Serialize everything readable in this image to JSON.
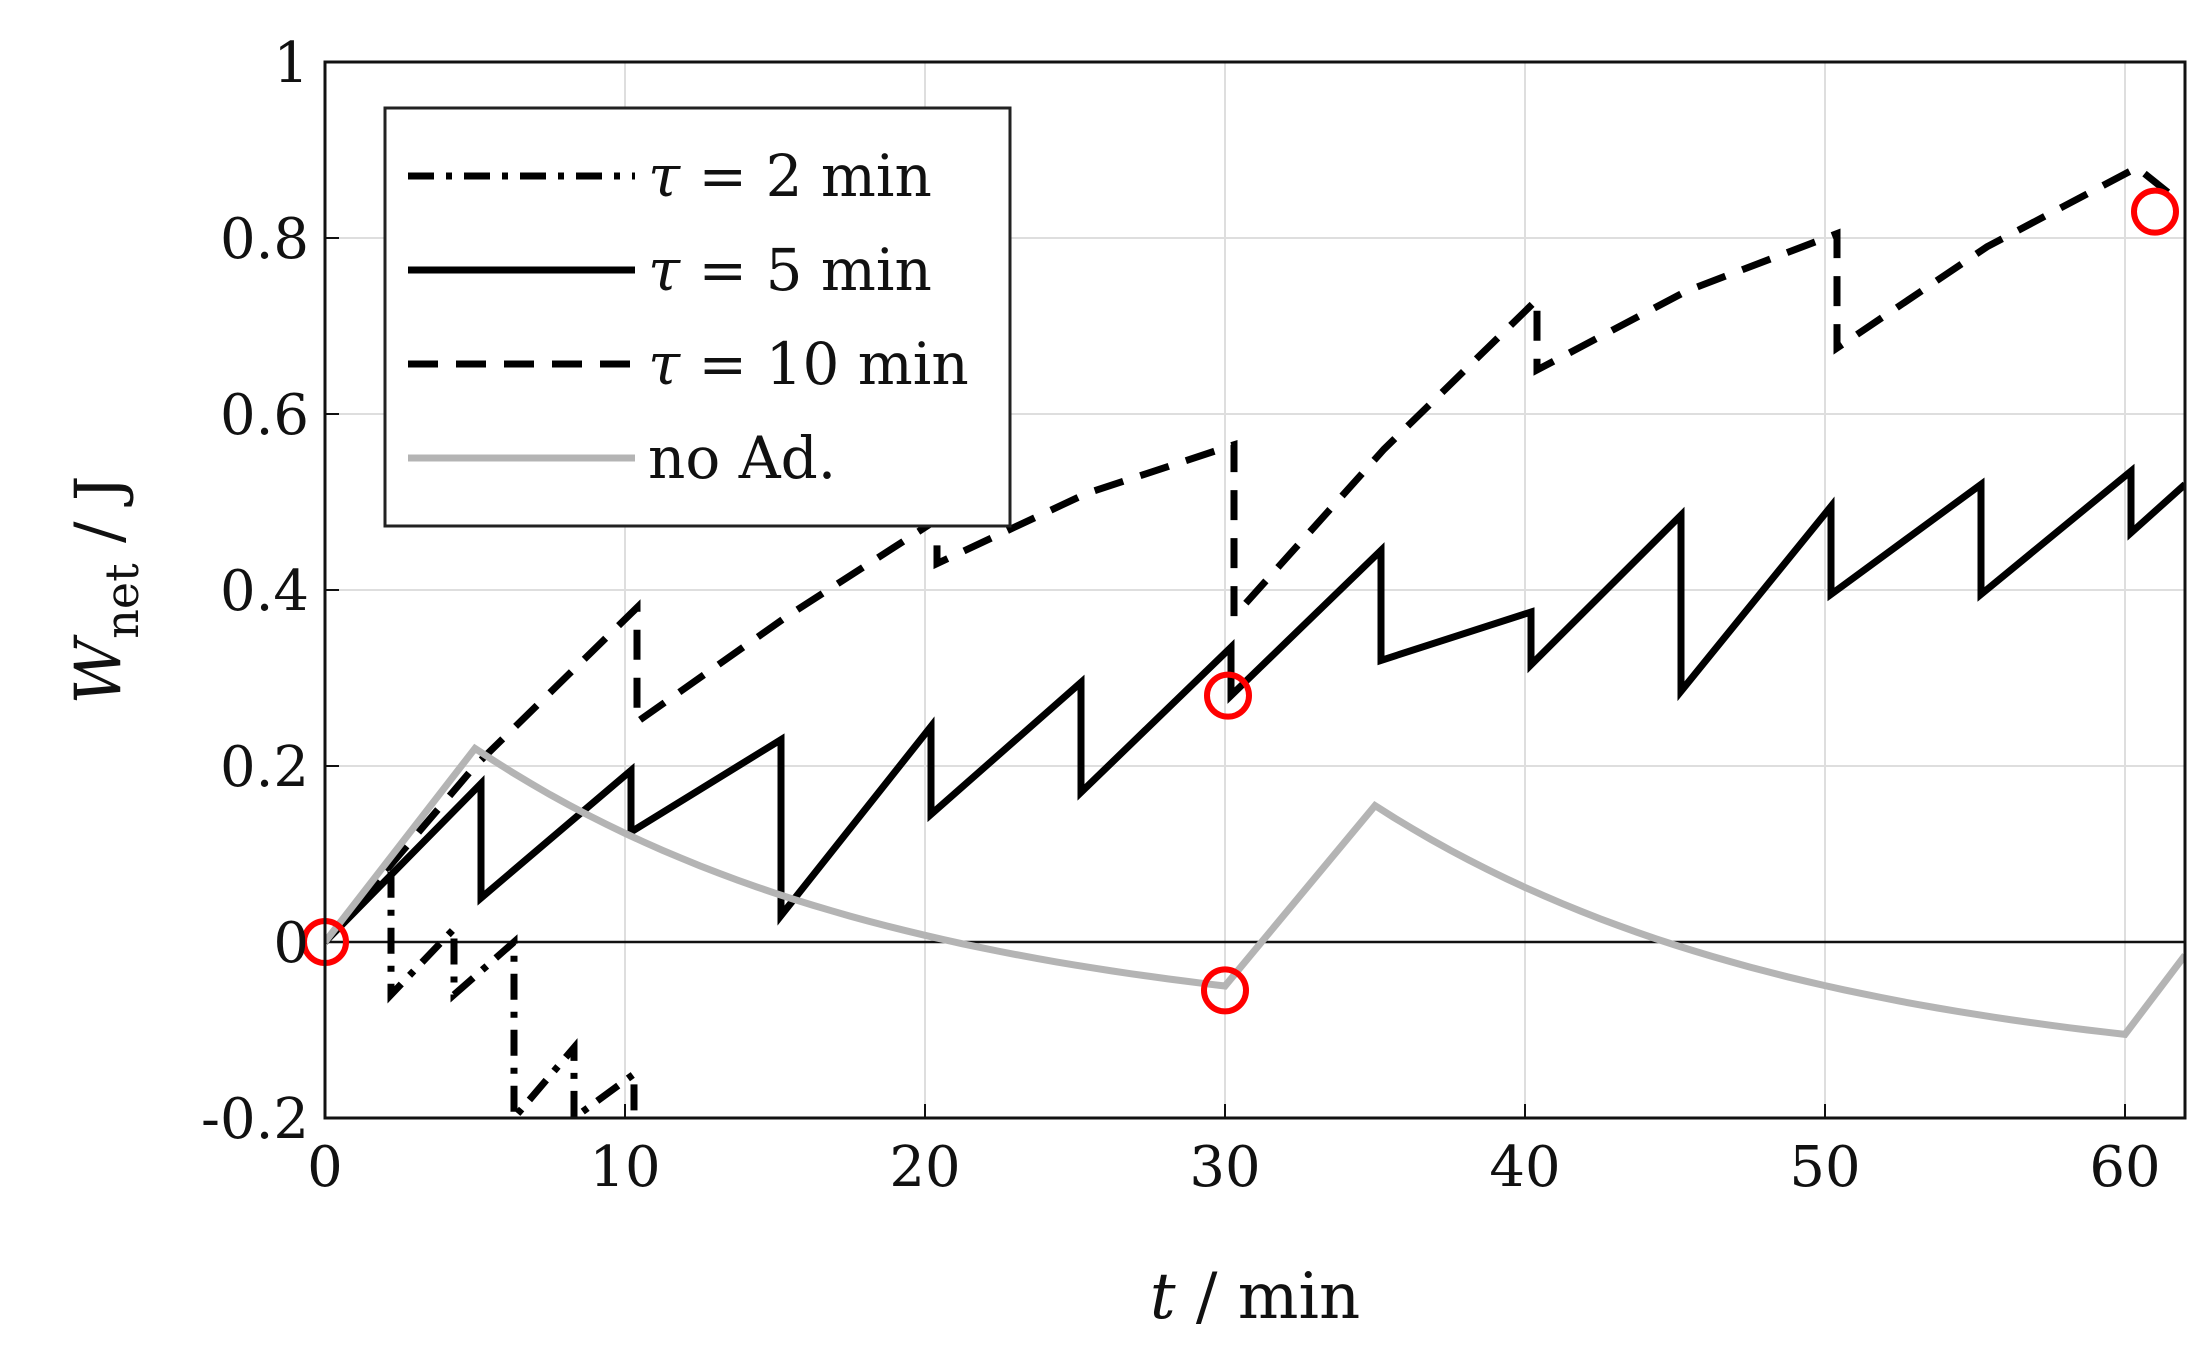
{
  "chart_data": {
    "type": "line",
    "title": "",
    "xlabel": {
      "var": "t",
      "unit": "min"
    },
    "ylabel": {
      "var": "W",
      "sub": "net",
      "unit": "J"
    },
    "xlim": [
      0,
      62
    ],
    "ylim": [
      -0.2,
      1
    ],
    "xticks": [
      "0",
      "10",
      "20",
      "30",
      "40",
      "50",
      "60"
    ],
    "yticks": [
      "-0.2",
      "0",
      "0.2",
      "0.4",
      "0.6",
      "0.8",
      "1"
    ],
    "grid": true,
    "legend_position": "top-left",
    "series": [
      {
        "name": "τ = 2 min",
        "legend_label": {
          "sym": "τ",
          "rest": " = 2 min"
        },
        "style": "dashdot",
        "color": "#000000",
        "points": [
          [
            0,
            0
          ],
          [
            2.2,
            0.09
          ],
          [
            2.2,
            -0.06
          ],
          [
            4.3,
            0.015
          ],
          [
            4.3,
            -0.06
          ],
          [
            6.3,
            0.0
          ],
          [
            6.3,
            -0.2
          ],
          [
            8.3,
            -0.12
          ],
          [
            8.3,
            -0.2
          ],
          [
            10.3,
            -0.15
          ],
          [
            10.3,
            -0.2
          ]
        ]
      },
      {
        "name": "τ = 5 min",
        "legend_label": {
          "sym": "τ",
          "rest": " = 5 min"
        },
        "style": "solid",
        "color": "#000000",
        "points": [
          [
            0,
            0
          ],
          [
            5.2,
            0.18
          ],
          [
            5.2,
            0.05
          ],
          [
            10.2,
            0.195
          ],
          [
            10.2,
            0.125
          ],
          [
            15.2,
            0.23
          ],
          [
            15.2,
            0.03
          ],
          [
            20.2,
            0.245
          ],
          [
            20.2,
            0.145
          ],
          [
            25.2,
            0.295
          ],
          [
            25.2,
            0.17
          ],
          [
            30.2,
            0.335
          ],
          [
            30.2,
            0.28
          ],
          [
            35.2,
            0.445
          ],
          [
            35.2,
            0.32
          ],
          [
            40.2,
            0.375
          ],
          [
            40.2,
            0.315
          ],
          [
            45.2,
            0.485
          ],
          [
            45.2,
            0.285
          ],
          [
            50.2,
            0.495
          ],
          [
            50.2,
            0.395
          ],
          [
            55.2,
            0.52
          ],
          [
            55.2,
            0.395
          ],
          [
            60.2,
            0.535
          ],
          [
            60.2,
            0.465
          ],
          [
            62,
            0.52
          ]
        ]
      },
      {
        "name": "τ = 10 min",
        "legend_label": {
          "sym": "τ",
          "rest": " = 10 min"
        },
        "style": "dashed",
        "color": "#000000",
        "points": [
          [
            0,
            0
          ],
          [
            5,
            0.2
          ],
          [
            10.4,
            0.38
          ],
          [
            10.4,
            0.25
          ],
          [
            15.4,
            0.37
          ],
          [
            20.4,
            0.48
          ],
          [
            20.4,
            0.43
          ],
          [
            25.4,
            0.51
          ],
          [
            30.3,
            0.565
          ],
          [
            30.3,
            0.37
          ],
          [
            35.3,
            0.56
          ],
          [
            40.4,
            0.73
          ],
          [
            40.4,
            0.65
          ],
          [
            45.4,
            0.74
          ],
          [
            50.4,
            0.805
          ],
          [
            50.4,
            0.675
          ],
          [
            55.4,
            0.79
          ],
          [
            60.4,
            0.88
          ],
          [
            61.5,
            0.85
          ]
        ]
      },
      {
        "name": "no Ad.",
        "legend_label": {
          "sym": "",
          "rest": "no Ad."
        },
        "style": "solid",
        "color": "#b4b4b4",
        "decay_rate": 0.07,
        "rising": [
          [
            0,
            0
          ],
          [
            5,
            0.22
          ],
          [
            30,
            -0.05
          ],
          [
            35,
            0.155
          ],
          [
            60,
            -0.105
          ],
          [
            62,
            -0.015
          ]
        ]
      }
    ],
    "markers": [
      {
        "x": 0,
        "y": 0,
        "shape": "circle",
        "color": "#ff0000"
      },
      {
        "x": 30.1,
        "y": 0.28,
        "shape": "circle",
        "color": "#ff0000"
      },
      {
        "x": 30.0,
        "y": -0.055,
        "shape": "circle",
        "color": "#ff0000"
      },
      {
        "x": 61,
        "y": 0.83,
        "shape": "circle",
        "color": "#ff0000"
      }
    ]
  }
}
